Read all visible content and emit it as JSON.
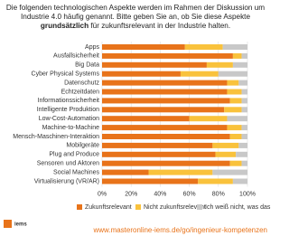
{
  "chart_data": {
    "type": "stacked_barh",
    "title_parts": [
      "Die folgenden technologischen Aspekte werden im Rahmen der Diskussion um Industrie 4.0 häufig genannt.  Bitte geben Sie an, ob Sie diese Aspekte ",
      "grundsätzlich",
      " für zukunftsrelevant in der Industrie halten."
    ],
    "categories": [
      "Apps",
      "Ausfallsicherheit",
      "Big Data",
      "Cyber Physical Systems",
      "Datenschutz",
      "Echtzeitdaten",
      "Informationssicherheit",
      "Intelligente Produktion",
      "Low-Cost-Automation",
      "Machine-to-Machine",
      "Mensch-Maschinen-Interaktion",
      "Mobilgeräte",
      "Plug and Produce",
      "Sensoren und Aktoren",
      "Social Machines",
      "Virtualisierung (VR/AR)"
    ],
    "series": [
      {
        "name": "Zukunftsrelevant",
        "color": "#e8731a",
        "values": [
          57,
          90,
          72,
          54,
          86,
          86,
          88,
          84,
          60,
          86,
          88,
          76,
          78,
          88,
          32,
          66
        ]
      },
      {
        "name": "Nicht zukunftsrelevant",
        "color": "#f9c23c",
        "values": [
          26,
          6,
          18,
          26,
          8,
          10,
          8,
          12,
          26,
          10,
          8,
          18,
          14,
          8,
          44,
          24
        ]
      },
      {
        "name": "Ich weiß nicht, was das ist",
        "color": "#c8c8c8",
        "values": [
          17,
          4,
          10,
          20,
          6,
          4,
          4,
          4,
          14,
          4,
          4,
          6,
          8,
          4,
          24,
          10
        ]
      }
    ],
    "xlim": [
      0,
      100
    ],
    "xticks": [
      {
        "value": 0,
        "label": "0%"
      },
      {
        "value": 20,
        "label": "20%"
      },
      {
        "value": 40,
        "label": "40%"
      },
      {
        "value": 60,
        "label": "60%"
      },
      {
        "value": 80,
        "label": "80%"
      },
      {
        "value": 100,
        "label": "100%"
      }
    ],
    "logo": "iems",
    "url": "www.masteronline-iems.de/go/ingenieur-kompetenzen",
    "url_color": "#e8731a"
  }
}
